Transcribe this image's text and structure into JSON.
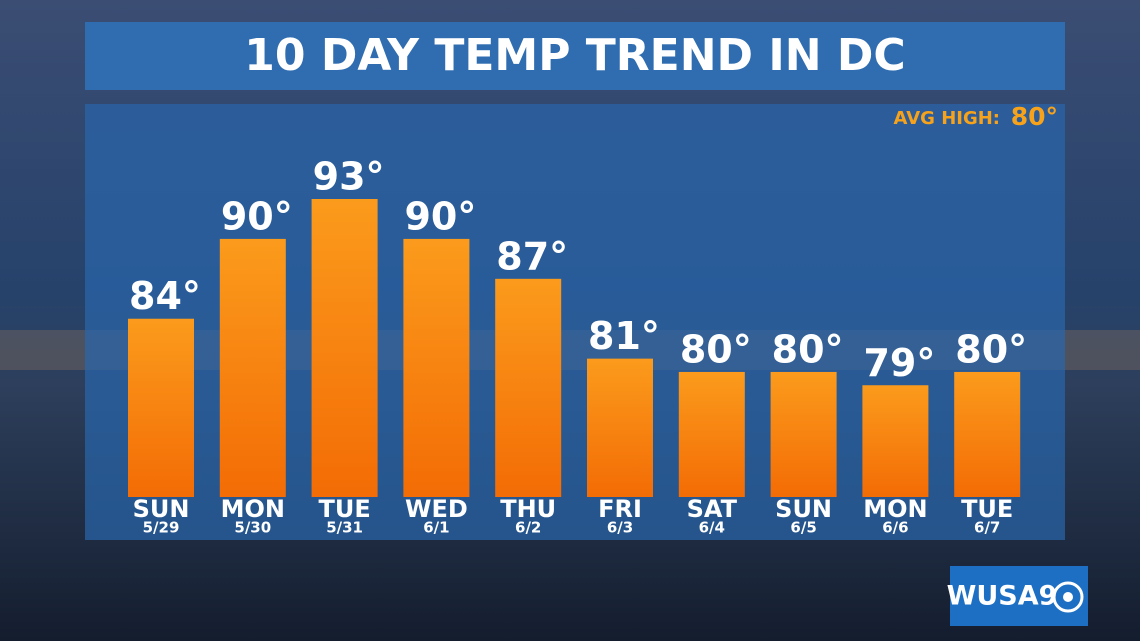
{
  "chart_data": {
    "type": "bar",
    "title": "10 DAY TEMP TREND IN DC",
    "categories": [
      "SUN",
      "MON",
      "TUE",
      "WED",
      "THU",
      "FRI",
      "SAT",
      "SUN",
      "MON",
      "TUE"
    ],
    "dates": [
      "5/29",
      "5/30",
      "5/31",
      "6/1",
      "6/2",
      "6/3",
      "6/4",
      "6/5",
      "6/6",
      "6/7"
    ],
    "values": [
      84,
      90,
      93,
      90,
      87,
      81,
      80,
      80,
      79,
      80
    ],
    "value_labels": [
      "84°",
      "90°",
      "93°",
      "90°",
      "87°",
      "81°",
      "80°",
      "80°",
      "79°",
      "80°"
    ],
    "ylim": [
      70.6,
      93
    ],
    "color": "#f7941d",
    "avg_high_label": "AVG HIGH:",
    "avg_high": "80°"
  },
  "logo": "WUSA9"
}
